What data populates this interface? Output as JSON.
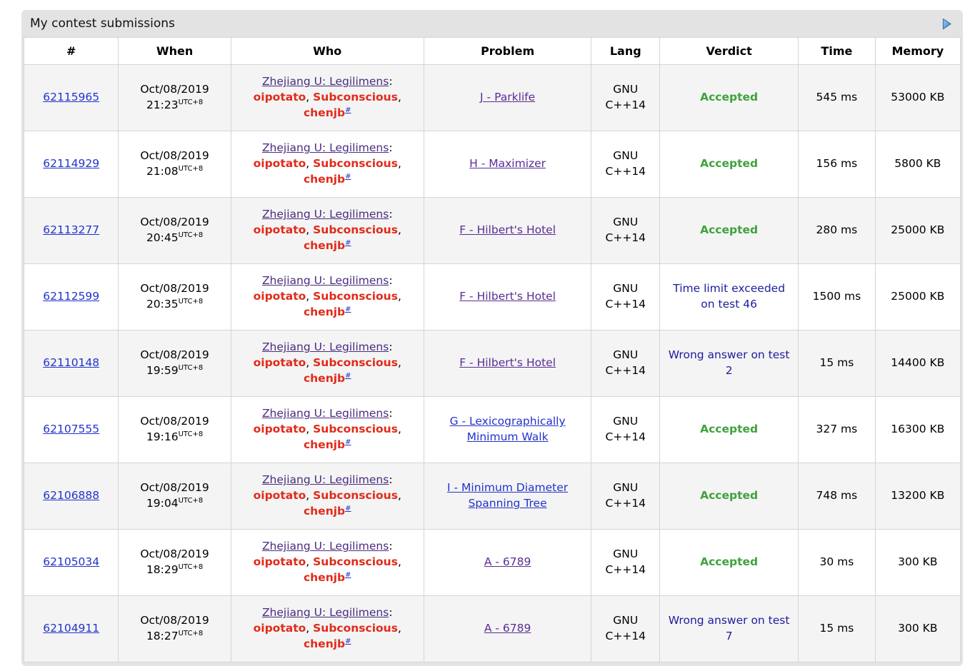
{
  "panel": {
    "title": "My contest submissions",
    "arrow_icon": "play-right-icon",
    "bg": "#e3e3e3"
  },
  "separators": {
    "colon": ":",
    "comma": ",",
    "space": " "
  },
  "colors": {
    "link_blue": "#2233cb",
    "visited_purple": "#5a2d93",
    "team_purple": "#4a2c7f",
    "member_red": "#e12b1a",
    "accepted_green": "#3fa23c",
    "failed_navy": "#1c1c9d",
    "stripe_gray": "#f4f4f4",
    "panel_gray": "#e3e3e3",
    "border_gray": "#d5d5d5",
    "arrow_blue": "#4080c2"
  },
  "table": {
    "columns": [
      "#",
      "When",
      "Who",
      "Problem",
      "Lang",
      "Verdict",
      "Time",
      "Memory"
    ],
    "rows": [
      {
        "id": "62115965",
        "date": "Oct/08/2019",
        "time": "21:23",
        "tz": "UTC+8",
        "team": "Zhejiang U: Legilimens",
        "members": [
          "oipotato",
          "Subconscious",
          "chenjb"
        ],
        "member_suffix": "#",
        "problem": "J - Parklife",
        "problem_visited": true,
        "lang": "GNU C++14",
        "verdict": "Accepted",
        "verdict_type": "accepted",
        "time_used": "545 ms",
        "memory": "53000 KB"
      },
      {
        "id": "62114929",
        "date": "Oct/08/2019",
        "time": "21:08",
        "tz": "UTC+8",
        "team": "Zhejiang U: Legilimens",
        "members": [
          "oipotato",
          "Subconscious",
          "chenjb"
        ],
        "member_suffix": "#",
        "problem": "H - Maximizer",
        "problem_visited": true,
        "lang": "GNU C++14",
        "verdict": "Accepted",
        "verdict_type": "accepted",
        "time_used": "156 ms",
        "memory": "5800 KB"
      },
      {
        "id": "62113277",
        "date": "Oct/08/2019",
        "time": "20:45",
        "tz": "UTC+8",
        "team": "Zhejiang U: Legilimens",
        "members": [
          "oipotato",
          "Subconscious",
          "chenjb"
        ],
        "member_suffix": "#",
        "problem": "F - Hilbert's Hotel",
        "problem_visited": true,
        "lang": "GNU C++14",
        "verdict": "Accepted",
        "verdict_type": "accepted",
        "time_used": "280 ms",
        "memory": "25000 KB"
      },
      {
        "id": "62112599",
        "date": "Oct/08/2019",
        "time": "20:35",
        "tz": "UTC+8",
        "team": "Zhejiang U: Legilimens",
        "members": [
          "oipotato",
          "Subconscious",
          "chenjb"
        ],
        "member_suffix": "#",
        "problem": "F - Hilbert's Hotel",
        "problem_visited": true,
        "lang": "GNU C++14",
        "verdict": "Time limit exceeded on test 46",
        "verdict_type": "failed",
        "time_used": "1500 ms",
        "memory": "25000 KB"
      },
      {
        "id": "62110148",
        "date": "Oct/08/2019",
        "time": "19:59",
        "tz": "UTC+8",
        "team": "Zhejiang U: Legilimens",
        "members": [
          "oipotato",
          "Subconscious",
          "chenjb"
        ],
        "member_suffix": "#",
        "problem": "F - Hilbert's Hotel",
        "problem_visited": true,
        "lang": "GNU C++14",
        "verdict": "Wrong answer on test 2",
        "verdict_type": "failed",
        "time_used": "15 ms",
        "memory": "14400 KB"
      },
      {
        "id": "62107555",
        "date": "Oct/08/2019",
        "time": "19:16",
        "tz": "UTC+8",
        "team": "Zhejiang U: Legilimens",
        "members": [
          "oipotato",
          "Subconscious",
          "chenjb"
        ],
        "member_suffix": "#",
        "problem": "G - Lexicographically Minimum Walk",
        "problem_visited": false,
        "lang": "GNU C++14",
        "verdict": "Accepted",
        "verdict_type": "accepted",
        "time_used": "327 ms",
        "memory": "16300 KB"
      },
      {
        "id": "62106888",
        "date": "Oct/08/2019",
        "time": "19:04",
        "tz": "UTC+8",
        "team": "Zhejiang U: Legilimens",
        "members": [
          "oipotato",
          "Subconscious",
          "chenjb"
        ],
        "member_suffix": "#",
        "problem": "I - Minimum Diameter Spanning Tree",
        "problem_visited": false,
        "lang": "GNU C++14",
        "verdict": "Accepted",
        "verdict_type": "accepted",
        "time_used": "748 ms",
        "memory": "13200 KB"
      },
      {
        "id": "62105034",
        "date": "Oct/08/2019",
        "time": "18:29",
        "tz": "UTC+8",
        "team": "Zhejiang U: Legilimens",
        "members": [
          "oipotato",
          "Subconscious",
          "chenjb"
        ],
        "member_suffix": "#",
        "problem": "A - 6789",
        "problem_visited": true,
        "lang": "GNU C++14",
        "verdict": "Accepted",
        "verdict_type": "accepted",
        "time_used": "30 ms",
        "memory": "300 KB"
      },
      {
        "id": "62104911",
        "date": "Oct/08/2019",
        "time": "18:27",
        "tz": "UTC+8",
        "team": "Zhejiang U: Legilimens",
        "members": [
          "oipotato",
          "Subconscious",
          "chenjb"
        ],
        "member_suffix": "#",
        "problem": "A - 6789",
        "problem_visited": true,
        "lang": "GNU C++14",
        "verdict": "Wrong answer on test 7",
        "verdict_type": "failed",
        "time_used": "15 ms",
        "memory": "300 KB"
      }
    ]
  }
}
